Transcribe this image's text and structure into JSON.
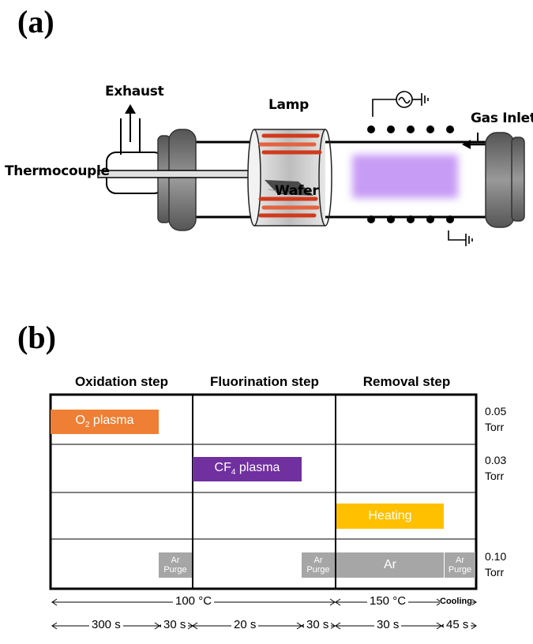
{
  "panel_a": {
    "label": "(a)",
    "labels": {
      "exhaust": "Exhaust",
      "lamp": "Lamp",
      "gas_inlet": "Gas Inlet",
      "thermocouple": "Thermocouple",
      "wafer": "Wafer"
    }
  },
  "panel_b": {
    "label": "(b)",
    "steps": [
      "Oxidation step",
      "Fluorination step",
      "Removal step"
    ],
    "bars": {
      "o2_plasma": {
        "pre": "O",
        "sub": "2",
        "post": " plasma",
        "color": "#ee7f35"
      },
      "cf4_plasma": {
        "pre": "CF",
        "sub": "4",
        "post": " plasma",
        "color": "#7030a0"
      },
      "heating": {
        "label": "Heating",
        "color": "#ffc000"
      },
      "ar": {
        "label": "Ar",
        "color": "#a6a6a6"
      },
      "ar_purge": {
        "line1": "Ar",
        "line2": "Purge",
        "color": "#a6a6a6"
      }
    },
    "pressures": [
      {
        "value": "0.05",
        "unit": "Torr"
      },
      {
        "value": "0.03",
        "unit": "Torr"
      },
      {
        "value": "0.10",
        "unit": "Torr"
      }
    ],
    "temperatures": {
      "first": "100 °C",
      "second": "150 °C",
      "cooling": "Cooling"
    },
    "durations": [
      "300 s",
      "30 s",
      "20 s",
      "30 s",
      "30 s",
      "45 s"
    ]
  }
}
